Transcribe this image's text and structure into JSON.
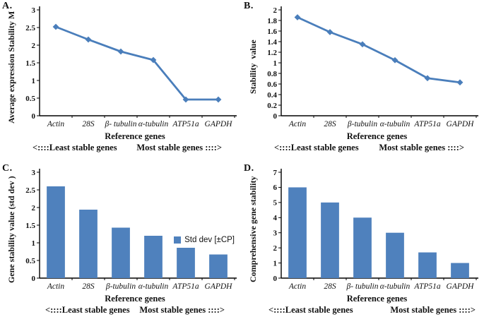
{
  "chart_data": [
    {
      "type": "line",
      "panel_label": "A.",
      "ylabel": "Average expression Stability M",
      "xlabel": "Reference genes",
      "categories": [
        "Actin",
        "28S",
        "β- tubulin",
        "α-tubulin",
        "ATP51a",
        "GAPDH"
      ],
      "values": [
        2.52,
        2.16,
        1.82,
        1.58,
        0.46,
        0.46
      ],
      "ylim": [
        0,
        3
      ],
      "yticks": [
        "0",
        "0.5",
        "1",
        "1.5",
        "2",
        "2.5",
        "3"
      ],
      "color": "#4a7ebb",
      "grid": "off",
      "annotation_left": "<::::Least stable genes",
      "annotation_right": "Most stable genes ::::>"
    },
    {
      "type": "line",
      "panel_label": "B.",
      "ylabel": "Stability  value",
      "xlabel": "Reference genes",
      "categories": [
        "Actin",
        "28S",
        "β-tubulin",
        "α-tubulin",
        "ATP51a",
        "GAPDH"
      ],
      "values": [
        1.86,
        1.58,
        1.35,
        1.05,
        0.71,
        0.63
      ],
      "ylim": [
        0,
        2
      ],
      "yticks": [
        "0",
        "0.2",
        "0.4",
        "0.6",
        "0.8",
        "1",
        "1.2",
        "1.4",
        "1.6",
        "1.8",
        "2"
      ],
      "color": "#4a7ebb",
      "grid": "off",
      "annotation_left": "<::::Least stable genes",
      "annotation_right": "Most stable genes ::::>"
    },
    {
      "type": "bar",
      "panel_label": "C.",
      "ylabel": "Gene stability value (std dev )",
      "xlabel": "Reference genes",
      "categories": [
        "Actin",
        "28S",
        "β-tubulin",
        "α-tubulin",
        "ATP51a",
        "GAPDH"
      ],
      "values": [
        2.6,
        1.94,
        1.43,
        1.2,
        0.86,
        0.67
      ],
      "ylim": [
        0,
        3
      ],
      "yticks": [
        "0",
        "0.5",
        "1",
        "1.5",
        "2",
        "2.5",
        "3"
      ],
      "color": "#4f81bd",
      "grid": "off",
      "legend": {
        "label": "Std dev [±CP]",
        "swatch_color": "#4f81bd",
        "position": "right-middle"
      },
      "annotation_left": "<::::Least stable genes",
      "annotation_right": "Most stable genes ::::>"
    },
    {
      "type": "bar",
      "panel_label": "D.",
      "ylabel": "Comprehensive gene stability",
      "xlabel": "Reference genes",
      "categories": [
        "Actin",
        "28S",
        "β- tubulin",
        "α-tubulin",
        "ATP51a",
        "GAPDH"
      ],
      "values": [
        6,
        5,
        4,
        3,
        1.7,
        1
      ],
      "ylim": [
        0,
        7
      ],
      "yticks": [
        "0",
        "1",
        "2",
        "3",
        "4",
        "5",
        "6",
        "7"
      ],
      "color": "#4f81bd",
      "grid": "off",
      "annotation_left": "<::::Least stable genes",
      "annotation_right": "Most stable genes ::::>"
    }
  ]
}
